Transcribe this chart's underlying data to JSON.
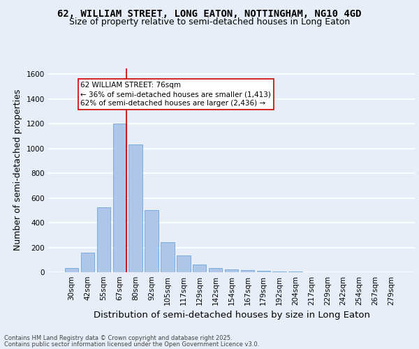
{
  "title1": "62, WILLIAM STREET, LONG EATON, NOTTINGHAM, NG10 4GD",
  "title2": "Size of property relative to semi-detached houses in Long Eaton",
  "xlabel": "Distribution of semi-detached houses by size in Long Eaton",
  "ylabel": "Number of semi-detached properties",
  "categories": [
    "30sqm",
    "42sqm",
    "55sqm",
    "67sqm",
    "80sqm",
    "92sqm",
    "105sqm",
    "117sqm",
    "129sqm",
    "142sqm",
    "154sqm",
    "167sqm",
    "179sqm",
    "192sqm",
    "204sqm",
    "217sqm",
    "229sqm",
    "242sqm",
    "254sqm",
    "267sqm",
    "279sqm"
  ],
  "values": [
    35,
    160,
    525,
    1200,
    1030,
    500,
    240,
    135,
    60,
    35,
    25,
    15,
    10,
    5,
    5,
    0,
    0,
    0,
    0,
    0,
    0
  ],
  "bar_color": "#aec6e8",
  "bar_edgecolor": "#5b9bd5",
  "property_bin_index": 3,
  "vline_color": "#cc0000",
  "annotation_text": "62 WILLIAM STREET: 76sqm\n← 36% of semi-detached houses are smaller (1,413)\n62% of semi-detached houses are larger (2,436) →",
  "annotation_box_edgecolor": "#cc0000",
  "annotation_box_facecolor": "#ffffff",
  "ylim": [
    0,
    1650
  ],
  "yticks": [
    0,
    200,
    400,
    600,
    800,
    1000,
    1200,
    1400,
    1600
  ],
  "footer1": "Contains HM Land Registry data © Crown copyright and database right 2025.",
  "footer2": "Contains public sector information licensed under the Open Government Licence v3.0.",
  "bg_color": "#e8eef7",
  "grid_color": "#ffffff",
  "title_fontsize": 10,
  "subtitle_fontsize": 9,
  "axis_label_fontsize": 9,
  "tick_fontsize": 7.5,
  "footer_fontsize": 6,
  "annotation_fontsize": 7.5
}
